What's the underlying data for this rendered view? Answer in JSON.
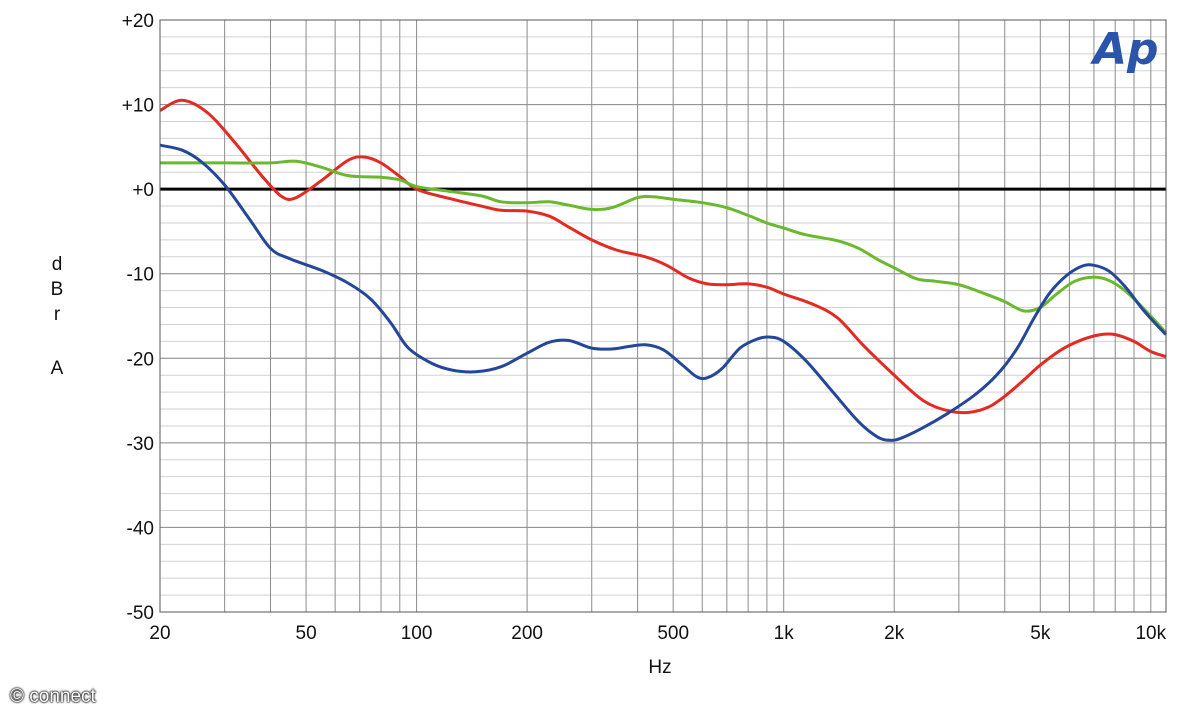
{
  "chart_data": {
    "type": "line",
    "xlabel": "Hz",
    "ylabel_letters": [
      "d",
      "B",
      "r",
      "",
      "A"
    ],
    "x_scale": "log",
    "xlim": [
      20,
      11000
    ],
    "ylim": [
      -50,
      20
    ],
    "grid": true,
    "logo": "Ap",
    "x_ticks": [
      {
        "value": 20,
        "label": "20"
      },
      {
        "value": 50,
        "label": "50"
      },
      {
        "value": 100,
        "label": "100"
      },
      {
        "value": 200,
        "label": "200"
      },
      {
        "value": 500,
        "label": "500"
      },
      {
        "value": 1000,
        "label": "1k"
      },
      {
        "value": 2000,
        "label": "2k"
      },
      {
        "value": 5000,
        "label": "5k"
      },
      {
        "value": 10000,
        "label": "10k"
      }
    ],
    "y_ticks": [
      {
        "value": 20,
        "label": "+20"
      },
      {
        "value": 10,
        "label": "+10"
      },
      {
        "value": 0,
        "label": "+0"
      },
      {
        "value": -10,
        "label": "-10"
      },
      {
        "value": -20,
        "label": "-20"
      },
      {
        "value": -30,
        "label": "-30"
      },
      {
        "value": -40,
        "label": "-40"
      },
      {
        "value": -50,
        "label": "-50"
      }
    ],
    "reference_line": 0,
    "series": [
      {
        "color": "#e32a23",
        "points": [
          [
            20,
            9.3
          ],
          [
            23,
            10.5
          ],
          [
            27,
            9
          ],
          [
            32,
            5.5
          ],
          [
            38,
            1.5
          ],
          [
            43,
            -0.9
          ],
          [
            47,
            -1
          ],
          [
            55,
            1
          ],
          [
            65,
            3.4
          ],
          [
            72,
            3.8
          ],
          [
            80,
            3.1
          ],
          [
            90,
            1.5
          ],
          [
            100,
            0
          ],
          [
            120,
            -1
          ],
          [
            150,
            -2
          ],
          [
            170,
            -2.5
          ],
          [
            200,
            -2.6
          ],
          [
            230,
            -3.2
          ],
          [
            260,
            -4.5
          ],
          [
            300,
            -6
          ],
          [
            350,
            -7.2
          ],
          [
            420,
            -8
          ],
          [
            480,
            -9
          ],
          [
            550,
            -10.5
          ],
          [
            620,
            -11.2
          ],
          [
            700,
            -11.3
          ],
          [
            800,
            -11.2
          ],
          [
            900,
            -11.6
          ],
          [
            1000,
            -12.4
          ],
          [
            1200,
            -13.6
          ],
          [
            1400,
            -15.2
          ],
          [
            1650,
            -18.5
          ],
          [
            2000,
            -22
          ],
          [
            2400,
            -25
          ],
          [
            2800,
            -26.2
          ],
          [
            3200,
            -26.4
          ],
          [
            3600,
            -25.8
          ],
          [
            4000,
            -24.5
          ],
          [
            4500,
            -22.6
          ],
          [
            5000,
            -20.8
          ],
          [
            5700,
            -19
          ],
          [
            6500,
            -17.8
          ],
          [
            7300,
            -17.2
          ],
          [
            8000,
            -17.2
          ],
          [
            9000,
            -18
          ],
          [
            10000,
            -19.2
          ],
          [
            11000,
            -19.8
          ]
        ]
      },
      {
        "color": "#6ab82e",
        "points": [
          [
            20,
            3.1
          ],
          [
            30,
            3.1
          ],
          [
            40,
            3.1
          ],
          [
            47,
            3.3
          ],
          [
            55,
            2.6
          ],
          [
            65,
            1.6
          ],
          [
            80,
            1.4
          ],
          [
            90,
            1.1
          ],
          [
            100,
            0.3
          ],
          [
            120,
            -0.2
          ],
          [
            150,
            -0.8
          ],
          [
            170,
            -1.5
          ],
          [
            200,
            -1.6
          ],
          [
            230,
            -1.5
          ],
          [
            260,
            -1.9
          ],
          [
            300,
            -2.4
          ],
          [
            340,
            -2.2
          ],
          [
            400,
            -1.0
          ],
          [
            440,
            -0.9
          ],
          [
            500,
            -1.2
          ],
          [
            600,
            -1.6
          ],
          [
            700,
            -2.2
          ],
          [
            800,
            -3.1
          ],
          [
            900,
            -4.0
          ],
          [
            1000,
            -4.6
          ],
          [
            1150,
            -5.4
          ],
          [
            1400,
            -6.1
          ],
          [
            1600,
            -7
          ],
          [
            1800,
            -8.3
          ],
          [
            2000,
            -9.3
          ],
          [
            2300,
            -10.6
          ],
          [
            2600,
            -10.9
          ],
          [
            3000,
            -11.3
          ],
          [
            3500,
            -12.3
          ],
          [
            4000,
            -13.3
          ],
          [
            4500,
            -14.4
          ],
          [
            5000,
            -14
          ],
          [
            5500,
            -12.5
          ],
          [
            6200,
            -10.9
          ],
          [
            7000,
            -10.4
          ],
          [
            7700,
            -10.8
          ],
          [
            8500,
            -12
          ],
          [
            9500,
            -14
          ],
          [
            10500,
            -16
          ],
          [
            11000,
            -17
          ]
        ]
      },
      {
        "color": "#24479a",
        "points": [
          [
            20,
            5.2
          ],
          [
            23,
            4.6
          ],
          [
            26,
            3.2
          ],
          [
            30,
            0.5
          ],
          [
            35,
            -3.5
          ],
          [
            40,
            -7
          ],
          [
            45,
            -8.2
          ],
          [
            55,
            -9.6
          ],
          [
            65,
            -11.1
          ],
          [
            75,
            -13
          ],
          [
            85,
            -15.8
          ],
          [
            95,
            -18.8
          ],
          [
            110,
            -20.6
          ],
          [
            125,
            -21.4
          ],
          [
            145,
            -21.6
          ],
          [
            170,
            -21
          ],
          [
            200,
            -19.4
          ],
          [
            230,
            -18.1
          ],
          [
            260,
            -17.9
          ],
          [
            300,
            -18.8
          ],
          [
            340,
            -18.9
          ],
          [
            380,
            -18.6
          ],
          [
            420,
            -18.4
          ],
          [
            470,
            -19
          ],
          [
            530,
            -20.8
          ],
          [
            580,
            -22.2
          ],
          [
            620,
            -22.3
          ],
          [
            680,
            -21.2
          ],
          [
            760,
            -18.8
          ],
          [
            850,
            -17.7
          ],
          [
            920,
            -17.5
          ],
          [
            1000,
            -18
          ],
          [
            1150,
            -20.3
          ],
          [
            1350,
            -23.8
          ],
          [
            1600,
            -27.5
          ],
          [
            1800,
            -29.3
          ],
          [
            1950,
            -29.7
          ],
          [
            2100,
            -29.4
          ],
          [
            2400,
            -28.2
          ],
          [
            2800,
            -26.5
          ],
          [
            3300,
            -24.4
          ],
          [
            3800,
            -22
          ],
          [
            4300,
            -19
          ],
          [
            4800,
            -15.3
          ],
          [
            5300,
            -12.3
          ],
          [
            5900,
            -10.2
          ],
          [
            6500,
            -9.1
          ],
          [
            7000,
            -9
          ],
          [
            7700,
            -9.7
          ],
          [
            8500,
            -11.5
          ],
          [
            9500,
            -14.2
          ],
          [
            10500,
            -16.3
          ],
          [
            11000,
            -17.2
          ]
        ]
      }
    ]
  },
  "watermark": "© connect"
}
